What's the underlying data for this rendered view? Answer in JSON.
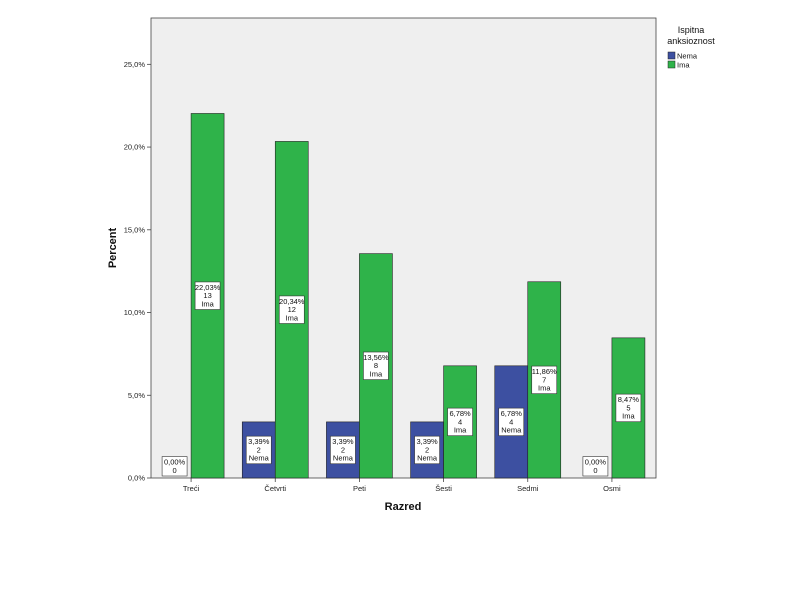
{
  "chart_data": {
    "type": "bar",
    "xlabel": "Razred",
    "ylabel": "Percent",
    "ylim": [
      0,
      27.8
    ],
    "yticks": [
      0,
      5,
      10,
      15,
      20,
      25
    ],
    "ytick_labels": [
      "0,0%",
      "5,0%",
      "10,0%",
      "15,0%",
      "20,0%",
      "25,0%"
    ],
    "grid": false,
    "legend_title": "Ispitna anksioznost",
    "legend_position": "top-right",
    "categories": [
      "Treći",
      "Četvrti",
      "Peti",
      "Šesti",
      "Sedmi",
      "Osmi"
    ],
    "series": [
      {
        "name": "Nema",
        "color": "#3d50a1",
        "values": [
          0.0,
          3.39,
          3.39,
          3.39,
          6.78,
          0.0
        ],
        "labels": [
          [
            "0,00%",
            "0"
          ],
          [
            "3,39%",
            "2",
            "Nema"
          ],
          [
            "3,39%",
            "2",
            "Nema"
          ],
          [
            "3,39%",
            "2",
            "Nema"
          ],
          [
            "6,78%",
            "4",
            "Nema"
          ],
          [
            "0,00%",
            "0"
          ]
        ]
      },
      {
        "name": "Ima",
        "color": "#2fb34a",
        "values": [
          22.03,
          20.34,
          13.56,
          6.78,
          11.86,
          8.47
        ],
        "labels": [
          [
            "22,03%",
            "13",
            "Ima"
          ],
          [
            "20,34%",
            "12",
            "Ima"
          ],
          [
            "13,56%",
            "8",
            "Ima"
          ],
          [
            "6,78%",
            "4",
            "Ima"
          ],
          [
            "11,86%",
            "7",
            "Ima"
          ],
          [
            "8,47%",
            "5",
            "Ima"
          ]
        ]
      }
    ]
  }
}
